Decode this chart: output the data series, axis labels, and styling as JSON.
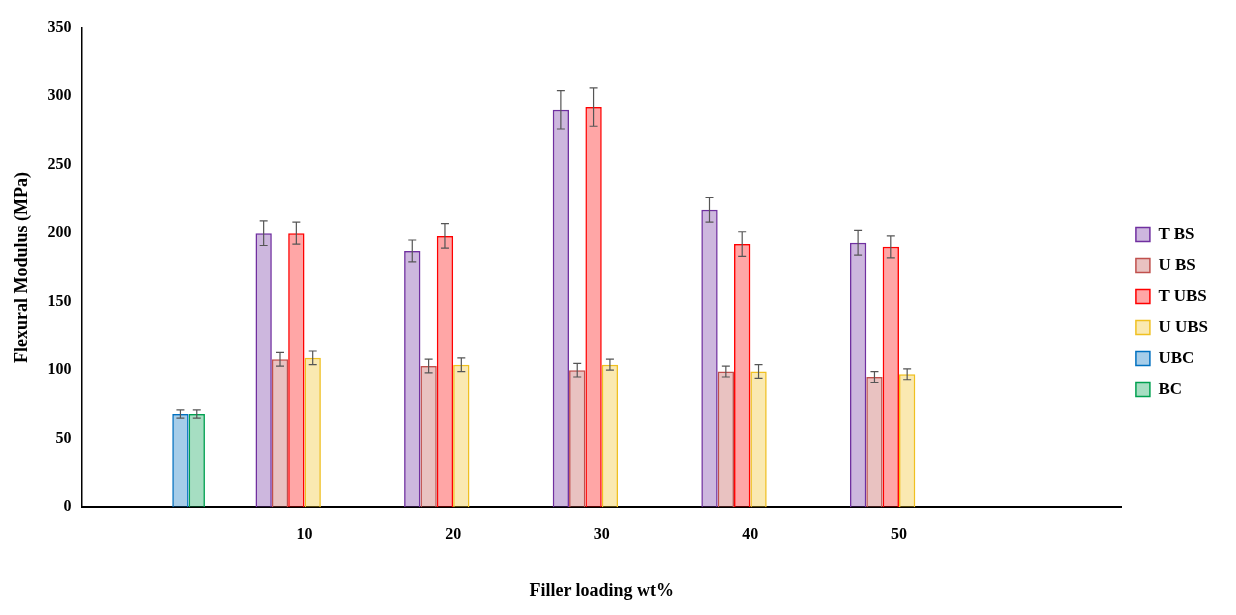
{
  "chart_data": {
    "type": "bar",
    "xlabel": "Filler loading wt%",
    "ylabel": "Flexural Modulus (MPa)",
    "categories": [
      null,
      "10",
      "20",
      "30",
      "40",
      "50",
      null
    ],
    "series": [
      {
        "name": "T BS",
        "color": "#7030a0",
        "values": [
          null,
          200,
          187,
          290,
          217,
          193,
          null
        ],
        "errors": [
          null,
          9,
          8,
          14,
          9,
          9,
          null
        ]
      },
      {
        "name": "U BS",
        "color": "#c0504d",
        "values": [
          null,
          108,
          103,
          100,
          99,
          95,
          null
        ],
        "errors": [
          null,
          5,
          5,
          5,
          4,
          4,
          null
        ]
      },
      {
        "name": "T UBS",
        "color": "#ff0000",
        "values": [
          null,
          200,
          198,
          292,
          192,
          190,
          null
        ],
        "errors": [
          null,
          8,
          9,
          14,
          9,
          8,
          null
        ]
      },
      {
        "name": "U UBS",
        "color": "#f0c020",
        "values": [
          null,
          109,
          104,
          104,
          99,
          97,
          null
        ],
        "errors": [
          null,
          5,
          5,
          4,
          5,
          4,
          null
        ]
      },
      {
        "name": "UBC",
        "color": "#0070c0",
        "values": [
          68,
          null,
          null,
          null,
          null,
          null,
          null
        ],
        "errors": [
          3,
          null,
          null,
          null,
          null,
          null,
          null
        ]
      },
      {
        "name": "BC",
        "color": "#00a050",
        "values": [
          68,
          null,
          null,
          null,
          null,
          null,
          null
        ],
        "errors": [
          3,
          null,
          null,
          null,
          null,
          null,
          null
        ]
      }
    ],
    "ylim": [
      0,
      350
    ],
    "yticks": [
      0,
      50,
      100,
      150,
      200,
      250,
      300,
      350
    ],
    "grid": false,
    "legend": "right"
  }
}
